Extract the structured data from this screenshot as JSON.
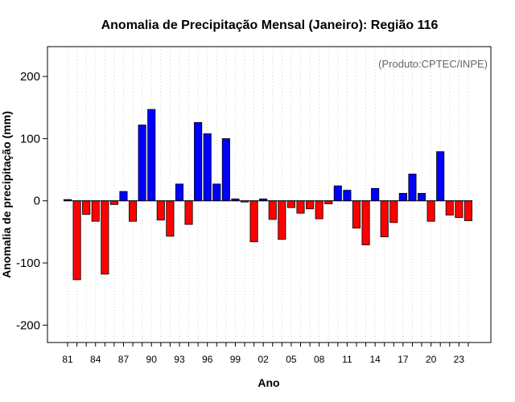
{
  "chart_data": {
    "type": "bar",
    "title": "Anomalia de Precipitação Mensal (Janeiro): Região 116",
    "xlabel": "Ano",
    "ylabel": "Anomalia de precipitação (mm)",
    "annotation": "(Produto:CPTEC/INPE)",
    "ylim": [
      -228,
      248
    ],
    "y_ticks": [
      -200,
      -100,
      0,
      100,
      200
    ],
    "x_tick_labels": [
      "81",
      "84",
      "87",
      "90",
      "93",
      "96",
      "99",
      "02",
      "05",
      "08",
      "11",
      "14",
      "17",
      "20",
      "23"
    ],
    "categories": [
      "1981",
      "1982",
      "1983",
      "1984",
      "1985",
      "1986",
      "1987",
      "1988",
      "1989",
      "1990",
      "1991",
      "1992",
      "1993",
      "1994",
      "1995",
      "1996",
      "1997",
      "1998",
      "1999",
      "2000",
      "2001",
      "2002",
      "2003",
      "2004",
      "2005",
      "2006",
      "2007",
      "2008",
      "2009",
      "2010",
      "2011",
      "2012",
      "2013",
      "2014",
      "2015",
      "2016",
      "2017",
      "2018",
      "2019",
      "2020",
      "2021",
      "2022",
      "2023",
      "2024"
    ],
    "values": [
      2,
      -127,
      -22,
      -33,
      -118,
      -6,
      15,
      -33,
      122,
      147,
      -31,
      -57,
      27,
      -38,
      126,
      108,
      27,
      100,
      3,
      -2,
      -66,
      3,
      -30,
      -62,
      -11,
      -20,
      -13,
      -29,
      -5,
      24,
      17,
      -44,
      -71,
      20,
      -58,
      -35,
      12,
      43,
      12,
      -33,
      79,
      -23,
      -27,
      -32
    ],
    "colors": {
      "positive": "#0000ff",
      "negative": "#ff0000",
      "grid": "#d3d3d3"
    }
  }
}
